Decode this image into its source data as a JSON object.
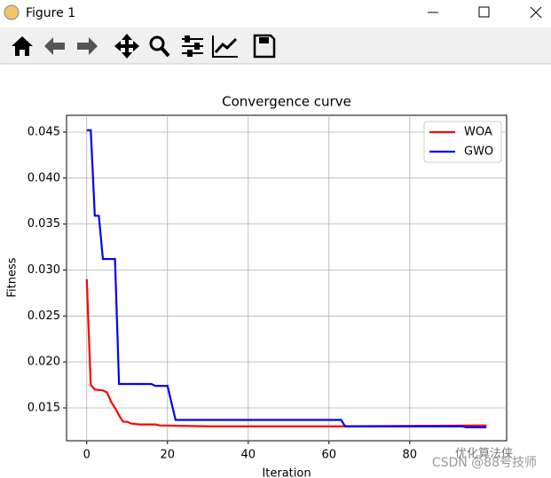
{
  "window_title": "Figure 1",
  "watermark": {
    "account": "优化算法侠",
    "source": "CSDN @88号技师"
  },
  "chart_data": {
    "type": "line",
    "title": "Convergence curve",
    "x_label": "Iteration",
    "y_label": "Fitness",
    "xlim": [
      -5,
      104
    ],
    "xticks": [
      0,
      20,
      40,
      60,
      80
    ],
    "ylim": [
      0.01143,
      0.04683
    ],
    "yticks": [
      0.015,
      {
        "value": 0.02,
        "label": "0.020"
      },
      0.025,
      {
        "value": 0.03,
        "label": "0.030"
      },
      0.035,
      {
        "value": 0.04,
        "label": "0.040"
      },
      0.045
    ],
    "grid": true,
    "legend": "upper right",
    "series": [
      {
        "name": "WOA",
        "color": "#ff0000",
        "x": [
          0,
          1,
          2,
          4,
          5,
          6,
          7,
          8,
          9,
          10,
          11,
          13,
          17,
          18,
          30,
          63,
          99
        ],
        "values": [
          0.029,
          0.0175,
          0.017,
          0.0169,
          0.0167,
          0.0157,
          0.015,
          0.0142,
          0.0135,
          0.0135,
          0.0133,
          0.0132,
          0.0132,
          0.0131,
          0.013,
          0.013,
          0.0131
        ]
      },
      {
        "name": "GWO",
        "color": "#0000ff",
        "x": [
          0,
          1,
          2,
          3,
          4,
          7,
          8,
          16,
          17,
          20,
          22,
          63,
          64,
          93,
          94,
          99
        ],
        "values": [
          0.0452,
          0.0452,
          0.0359,
          0.0359,
          0.0312,
          0.0312,
          0.0176,
          0.0176,
          0.0174,
          0.0174,
          0.0137,
          0.0137,
          0.013,
          0.013,
          0.0129,
          0.0129
        ]
      }
    ]
  }
}
